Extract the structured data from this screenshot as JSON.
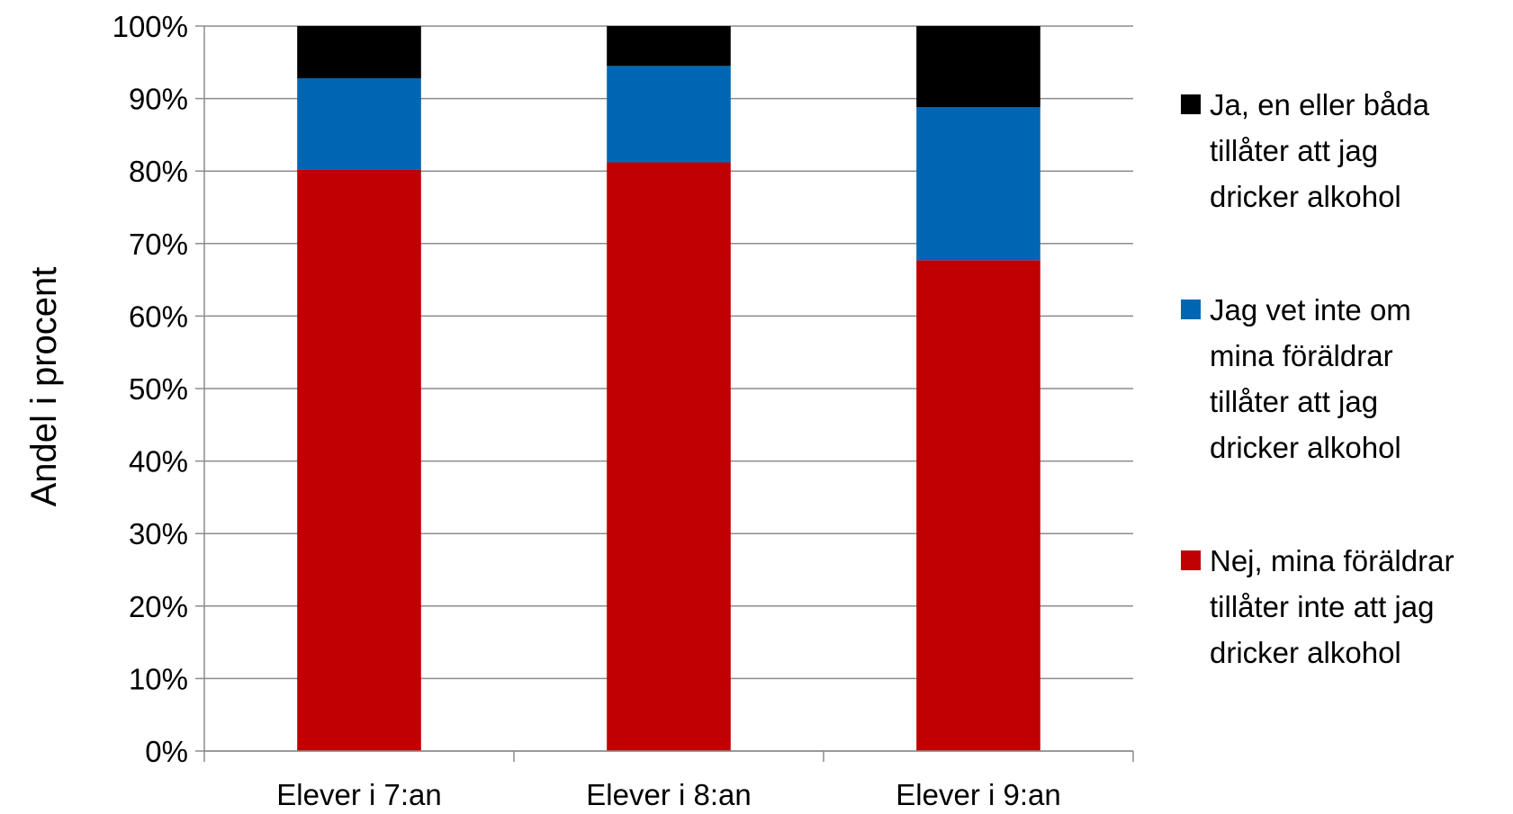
{
  "chart_data": {
    "type": "bar",
    "stacked": true,
    "percent": true,
    "title": "",
    "xlabel": "",
    "ylabel": "Andel i procent",
    "ylim": [
      0,
      100
    ],
    "yticks": [
      "0%",
      "10%",
      "20%",
      "30%",
      "40%",
      "50%",
      "60%",
      "70%",
      "80%",
      "90%",
      "100%"
    ],
    "grid": true,
    "legend_position": "right",
    "categories": [
      "Elever i 7:an",
      "Elever i 8:an",
      "Elever i 9:an"
    ],
    "series": [
      {
        "name": "Nej, mina föräldrar tillåter inte att jag dricker alkohol",
        "legend_lines": [
          "Nej, mina föräldrar",
          "tillåter inte att jag",
          "dricker alkohol"
        ],
        "color": "#c00000",
        "values": [
          80.2,
          81.2,
          67.7
        ]
      },
      {
        "name": "Jag vet inte om mina föräldrar tillåter att jag dricker alkohol",
        "legend_lines": [
          "Jag vet inte om",
          "mina föräldrar",
          "tillåter att jag",
          "dricker alkohol"
        ],
        "color": "#0066b3",
        "values": [
          12.6,
          13.3,
          21.1
        ]
      },
      {
        "name": "Ja, en eller båda tillåter att jag dricker alkohol",
        "legend_lines": [
          "Ja, en eller båda",
          "tillåter att jag",
          "dricker alkohol"
        ],
        "color": "#000000",
        "values": [
          7.2,
          5.5,
          11.2
        ]
      }
    ]
  }
}
